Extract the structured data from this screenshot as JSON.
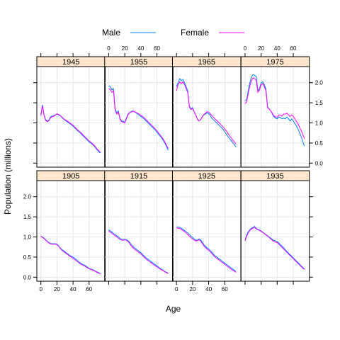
{
  "chart_data": {
    "type": "line",
    "xlabel": "Age",
    "ylabel": "Population (millions)",
    "xlim": [
      -5,
      80
    ],
    "ylim": [
      -0.1,
      2.4
    ],
    "x_ticks": [
      0,
      20,
      40,
      60
    ],
    "y_ticks": [
      0.0,
      0.5,
      1.0,
      1.5,
      2.0
    ],
    "y_tick_labels": [
      "0.0",
      "0.5",
      "1.0",
      "1.5",
      "2.0"
    ],
    "grid": true,
    "legend_position": "top",
    "ages": [
      0,
      2,
      4,
      6,
      8,
      10,
      12,
      14,
      16,
      18,
      20,
      22,
      24,
      26,
      28,
      30,
      32,
      34,
      36,
      38,
      40,
      42,
      44,
      46,
      48,
      50,
      52,
      54,
      56,
      58,
      60,
      62,
      64,
      66,
      68,
      70,
      72,
      74
    ],
    "series": [
      {
        "name": "Male",
        "color": "#0080ff"
      },
      {
        "name": "Female",
        "color": "#ff00ff"
      }
    ],
    "panels": [
      {
        "title": "1905",
        "male": [
          1.02,
          1.0,
          0.97,
          0.93,
          0.89,
          0.86,
          0.84,
          0.83,
          0.83,
          0.83,
          0.82,
          0.78,
          0.73,
          0.69,
          0.66,
          0.63,
          0.6,
          0.57,
          0.54,
          0.52,
          0.5,
          0.47,
          0.44,
          0.4,
          0.37,
          0.34,
          0.32,
          0.3,
          0.28,
          0.25,
          0.22,
          0.2,
          0.19,
          0.17,
          0.15,
          0.13,
          0.11,
          0.09
        ],
        "female": [
          1.01,
          0.99,
          0.96,
          0.92,
          0.88,
          0.85,
          0.83,
          0.82,
          0.82,
          0.82,
          0.81,
          0.77,
          0.72,
          0.67,
          0.64,
          0.61,
          0.58,
          0.55,
          0.52,
          0.5,
          0.47,
          0.44,
          0.41,
          0.38,
          0.35,
          0.32,
          0.3,
          0.28,
          0.26,
          0.23,
          0.21,
          0.19,
          0.18,
          0.16,
          0.14,
          0.12,
          0.1,
          0.08
        ]
      },
      {
        "title": "1915",
        "male": [
          1.18,
          1.15,
          1.12,
          1.09,
          1.06,
          1.03,
          1.0,
          0.97,
          0.94,
          0.93,
          0.94,
          0.93,
          0.91,
          0.87,
          0.81,
          0.77,
          0.73,
          0.7,
          0.67,
          0.64,
          0.61,
          0.57,
          0.53,
          0.49,
          0.46,
          0.43,
          0.4,
          0.37,
          0.34,
          0.31,
          0.28,
          0.25,
          0.22,
          0.19,
          0.17,
          0.14,
          0.12,
          0.1
        ],
        "female": [
          1.15,
          1.12,
          1.09,
          1.06,
          1.03,
          1.0,
          0.97,
          0.94,
          0.92,
          0.92,
          0.93,
          0.92,
          0.89,
          0.84,
          0.78,
          0.74,
          0.7,
          0.67,
          0.64,
          0.61,
          0.58,
          0.54,
          0.5,
          0.46,
          0.43,
          0.4,
          0.37,
          0.34,
          0.31,
          0.28,
          0.26,
          0.23,
          0.2,
          0.18,
          0.16,
          0.13,
          0.11,
          0.09
        ]
      },
      {
        "title": "1925",
        "male": [
          1.25,
          1.25,
          1.24,
          1.22,
          1.19,
          1.16,
          1.13,
          1.1,
          1.06,
          1.02,
          0.99,
          0.95,
          0.92,
          0.92,
          0.95,
          0.93,
          0.87,
          0.81,
          0.77,
          0.73,
          0.7,
          0.66,
          0.62,
          0.57,
          0.53,
          0.5,
          0.47,
          0.44,
          0.41,
          0.38,
          0.35,
          0.32,
          0.29,
          0.26,
          0.23,
          0.2,
          0.17,
          0.14
        ],
        "female": [
          1.22,
          1.22,
          1.21,
          1.19,
          1.16,
          1.13,
          1.1,
          1.06,
          1.02,
          0.98,
          0.95,
          0.92,
          0.9,
          0.91,
          0.93,
          0.9,
          0.84,
          0.78,
          0.74,
          0.7,
          0.67,
          0.63,
          0.59,
          0.54,
          0.5,
          0.47,
          0.44,
          0.41,
          0.38,
          0.35,
          0.32,
          0.29,
          0.26,
          0.23,
          0.2,
          0.17,
          0.15,
          0.12
        ]
      },
      {
        "title": "1935",
        "male": [
          0.92,
          1.05,
          1.13,
          1.18,
          1.22,
          1.24,
          1.26,
          1.21,
          1.19,
          1.17,
          1.15,
          1.12,
          1.09,
          1.06,
          1.03,
          1.0,
          0.97,
          0.94,
          0.91,
          0.9,
          0.89,
          0.85,
          0.81,
          0.77,
          0.73,
          0.68,
          0.64,
          0.6,
          0.56,
          0.52,
          0.48,
          0.44,
          0.4,
          0.36,
          0.32,
          0.28,
          0.24,
          0.2
        ],
        "female": [
          0.9,
          1.02,
          1.1,
          1.16,
          1.2,
          1.22,
          1.24,
          1.2,
          1.18,
          1.16,
          1.14,
          1.11,
          1.08,
          1.05,
          1.02,
          0.99,
          0.95,
          0.92,
          0.89,
          0.87,
          0.86,
          0.82,
          0.78,
          0.74,
          0.7,
          0.66,
          0.62,
          0.58,
          0.54,
          0.5,
          0.46,
          0.42,
          0.38,
          0.34,
          0.3,
          0.26,
          0.22,
          0.19
        ]
      },
      {
        "title": "1945",
        "male": [
          1.2,
          1.45,
          1.2,
          1.08,
          1.05,
          1.07,
          1.15,
          1.17,
          1.18,
          1.2,
          1.22,
          1.2,
          1.18,
          1.14,
          1.1,
          1.07,
          1.04,
          1.01,
          0.98,
          0.95,
          0.92,
          0.88,
          0.84,
          0.8,
          0.77,
          0.73,
          0.69,
          0.65,
          0.61,
          0.57,
          0.53,
          0.5,
          0.47,
          0.43,
          0.38,
          0.33,
          0.29,
          0.25
        ],
        "female": [
          1.18,
          1.42,
          1.18,
          1.06,
          1.03,
          1.05,
          1.13,
          1.15,
          1.16,
          1.19,
          1.23,
          1.21,
          1.19,
          1.15,
          1.11,
          1.08,
          1.06,
          1.03,
          1.0,
          0.97,
          0.94,
          0.9,
          0.86,
          0.82,
          0.79,
          0.75,
          0.71,
          0.67,
          0.63,
          0.59,
          0.55,
          0.52,
          0.49,
          0.45,
          0.4,
          0.35,
          0.31,
          0.27
        ]
      },
      {
        "title": "1955",
        "male": [
          1.92,
          1.9,
          1.82,
          1.85,
          1.35,
          1.25,
          1.3,
          1.12,
          1.05,
          1.04,
          1.02,
          1.12,
          1.22,
          1.26,
          1.28,
          1.3,
          1.28,
          1.25,
          1.22,
          1.19,
          1.16,
          1.13,
          1.1,
          1.06,
          1.02,
          0.98,
          0.94,
          0.9,
          0.86,
          0.82,
          0.77,
          0.72,
          0.67,
          0.62,
          0.56,
          0.49,
          0.41,
          0.32
        ],
        "female": [
          1.85,
          1.83,
          1.76,
          1.8,
          1.32,
          1.22,
          1.27,
          1.1,
          1.03,
          1.02,
          1.0,
          1.1,
          1.2,
          1.25,
          1.27,
          1.29,
          1.28,
          1.26,
          1.24,
          1.22,
          1.19,
          1.16,
          1.13,
          1.09,
          1.05,
          1.01,
          0.97,
          0.93,
          0.89,
          0.85,
          0.8,
          0.75,
          0.7,
          0.65,
          0.59,
          0.52,
          0.44,
          0.36
        ]
      },
      {
        "title": "1965",
        "male": [
          1.9,
          2.0,
          2.1,
          2.05,
          2.08,
          2.0,
          1.9,
          1.8,
          1.42,
          1.35,
          1.38,
          1.28,
          1.2,
          1.1,
          1.05,
          1.08,
          1.15,
          1.2,
          1.22,
          1.25,
          1.23,
          1.18,
          1.12,
          1.08,
          1.04,
          1.0,
          0.96,
          0.92,
          0.88,
          0.84,
          0.78,
          0.72,
          0.66,
          0.61,
          0.56,
          0.51,
          0.46,
          0.4
        ],
        "female": [
          1.8,
          1.95,
          2.02,
          1.98,
          2.02,
          1.95,
          1.85,
          1.75,
          1.4,
          1.33,
          1.36,
          1.27,
          1.19,
          1.09,
          1.05,
          1.08,
          1.16,
          1.21,
          1.24,
          1.28,
          1.27,
          1.23,
          1.18,
          1.14,
          1.1,
          1.06,
          1.02,
          0.98,
          0.94,
          0.9,
          0.85,
          0.8,
          0.74,
          0.68,
          0.63,
          0.58,
          0.53,
          0.47
        ]
      },
      {
        "title": "1975",
        "male": [
          1.55,
          1.58,
          1.8,
          2.0,
          2.15,
          2.2,
          2.18,
          2.15,
          1.8,
          1.85,
          2.0,
          2.02,
          1.95,
          1.85,
          1.4,
          1.35,
          1.3,
          1.22,
          1.15,
          1.12,
          1.1,
          1.15,
          1.13,
          1.1,
          1.12,
          1.1,
          1.15,
          1.1,
          1.05,
          1.1,
          1.05,
          0.98,
          0.92,
          0.85,
          0.75,
          0.65,
          0.52,
          0.42
        ],
        "female": [
          1.48,
          1.52,
          1.73,
          1.92,
          2.05,
          2.12,
          2.1,
          2.06,
          1.76,
          1.82,
          1.95,
          1.98,
          1.9,
          1.8,
          1.38,
          1.34,
          1.3,
          1.24,
          1.17,
          1.15,
          1.14,
          1.2,
          1.19,
          1.17,
          1.22,
          1.22,
          1.24,
          1.2,
          1.16,
          1.2,
          1.16,
          1.1,
          1.04,
          0.97,
          0.88,
          0.8,
          0.7,
          0.6
        ]
      }
    ]
  }
}
